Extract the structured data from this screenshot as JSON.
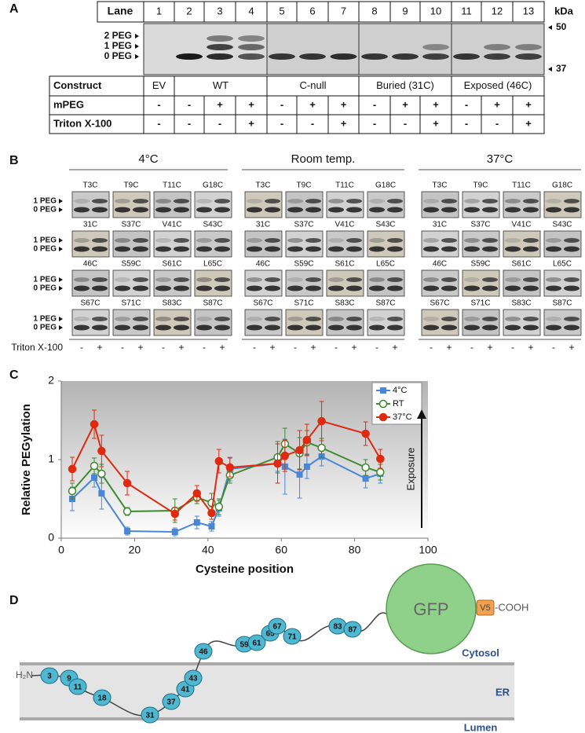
{
  "panel_labels": [
    "A",
    "B",
    "C",
    "D"
  ],
  "panel_a": {
    "lane_header": "Lane",
    "lanes": [
      "1",
      "2",
      "3",
      "4",
      "5",
      "6",
      "7",
      "8",
      "9",
      "10",
      "11",
      "12",
      "13"
    ],
    "kda_label": "kDa",
    "peg_labels": [
      "2 PEG",
      "1 PEG",
      "0 PEG"
    ],
    "markers": [
      "50",
      "37"
    ],
    "table": {
      "rows": [
        [
          "Construct",
          "EV",
          "WT",
          "C-null",
          "Buried (31C)",
          "Exposed (46C)"
        ],
        [
          "mPEG",
          "-",
          "-",
          "+",
          "+",
          "-",
          "+",
          "+",
          "-",
          "+",
          "+",
          "-",
          "+",
          "+"
        ],
        [
          "Triton X-100",
          "-",
          "-",
          "-",
          "+",
          "-",
          "-",
          "+",
          "-",
          "-",
          "+",
          "-",
          "-",
          "+"
        ]
      ]
    }
  },
  "panel_b": {
    "groups": [
      "4°C",
      "Room temp.",
      "37°C"
    ],
    "blots": [
      [
        "T3C",
        "T9C",
        "T11C",
        "G18C"
      ],
      [
        "31C",
        "S37C",
        "V41C",
        "S43C"
      ],
      [
        "46C",
        "S59C",
        "S61C",
        "L65C"
      ],
      [
        "S67C",
        "S71C",
        "S83C",
        "S87C"
      ]
    ],
    "peg_labels": [
      "1 PEG",
      "0 PEG"
    ],
    "triton_label": "Triton X-100",
    "triton_signs": [
      "-",
      "+"
    ]
  },
  "chart_data": {
    "type": "line",
    "x_label": "Cysteine position",
    "y_label": "Relative PEGylation",
    "annotation": "Exposure",
    "x": [
      3,
      9,
      11,
      18,
      31,
      37,
      41,
      43,
      46,
      59,
      61,
      65,
      67,
      71,
      83,
      87
    ],
    "series": [
      {
        "name": "4°C",
        "color": "#4a86d8",
        "marker": "square",
        "values": [
          0.5,
          0.77,
          0.57,
          0.09,
          0.08,
          0.2,
          0.15,
          0.38,
          0.88,
          0.95,
          0.91,
          0.81,
          0.91,
          1.04,
          0.76,
          0.82
        ],
        "errors": [
          0.15,
          0.12,
          0.2,
          0.05,
          0.05,
          0.08,
          0.06,
          0.1,
          0.15,
          0.1,
          0.35,
          0.3,
          0.15,
          0.12,
          0.12,
          0.12
        ]
      },
      {
        "name": "RT",
        "color": "#3e8a2e",
        "marker": "open-circle",
        "values": [
          0.6,
          0.92,
          0.82,
          0.34,
          0.35,
          0.52,
          0.45,
          0.4,
          0.8,
          1.03,
          1.2,
          1.08,
          1.22,
          1.15,
          0.9,
          0.84
        ],
        "errors": [
          0.1,
          0.1,
          0.12,
          0.05,
          0.15,
          0.08,
          0.12,
          0.1,
          0.1,
          0.2,
          0.2,
          0.2,
          0.15,
          0.12,
          0.1,
          0.1
        ]
      },
      {
        "name": "37°C",
        "color": "#e02a10",
        "marker": "circle",
        "values": [
          0.88,
          1.45,
          1.11,
          0.7,
          0.31,
          0.57,
          0.32,
          0.98,
          0.9,
          0.95,
          1.05,
          1.12,
          1.25,
          1.49,
          1.33,
          1.01
        ],
        "errors": [
          0.15,
          0.18,
          0.2,
          0.15,
          0.08,
          0.1,
          0.08,
          0.15,
          0.12,
          0.25,
          0.2,
          0.25,
          0.2,
          0.25,
          0.15,
          0.12
        ]
      }
    ],
    "xlim": [
      0,
      100
    ],
    "ylim": [
      0,
      2
    ],
    "xticks": [
      0,
      20,
      40,
      60,
      80,
      100
    ],
    "yticks": [
      0,
      1,
      2
    ],
    "legend": "upper right"
  },
  "panel_d": {
    "n_terminus": "H₂N",
    "residues": [
      "3",
      "9",
      "11",
      "18",
      "31",
      "37",
      "41",
      "43",
      "46",
      "59",
      "61",
      "65",
      "67",
      "71",
      "83",
      "87"
    ],
    "gfp": "GFP",
    "tag": "V5",
    "c_terminus": "-COOH",
    "compartments": [
      "Cytosol",
      "ER",
      "Lumen"
    ]
  }
}
